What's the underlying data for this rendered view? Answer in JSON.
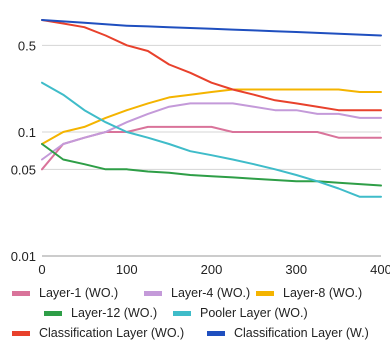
{
  "chart_data": {
    "type": "line",
    "title": "",
    "xlabel": "",
    "ylabel": "",
    "xlim": [
      0,
      400
    ],
    "ylim": [
      0.01,
      1
    ],
    "yscale": "log",
    "grid": "horizontal",
    "legend_position": "bottom",
    "x_ticks": [
      "0",
      "100",
      "200",
      "300",
      "400"
    ],
    "y_ticks": [
      "0.01",
      "0.05",
      "0.1",
      "0.5"
    ],
    "x": [
      0,
      25,
      50,
      75,
      100,
      125,
      150,
      175,
      200,
      225,
      250,
      275,
      300,
      325,
      350,
      375,
      400
    ],
    "series": [
      {
        "name": "Layer-1 (WO.)",
        "color": "#d9739a",
        "values": [
          0.05,
          0.08,
          0.09,
          0.1,
          0.1,
          0.11,
          0.11,
          0.11,
          0.11,
          0.1,
          0.1,
          0.1,
          0.1,
          0.1,
          0.09,
          0.09,
          0.09
        ]
      },
      {
        "name": "Layer-4 (WO.)",
        "color": "#c49ad9",
        "values": [
          0.06,
          0.08,
          0.09,
          0.1,
          0.12,
          0.14,
          0.16,
          0.17,
          0.17,
          0.17,
          0.16,
          0.15,
          0.15,
          0.14,
          0.14,
          0.13,
          0.13
        ]
      },
      {
        "name": "Layer-8 (WO.)",
        "color": "#f4b400",
        "values": [
          0.08,
          0.1,
          0.11,
          0.13,
          0.15,
          0.17,
          0.19,
          0.2,
          0.21,
          0.22,
          0.22,
          0.22,
          0.22,
          0.22,
          0.22,
          0.21,
          0.21
        ]
      },
      {
        "name": "Layer-12 (WO.)",
        "color": "#2e9e47",
        "values": [
          0.08,
          0.06,
          0.055,
          0.05,
          0.05,
          0.048,
          0.047,
          0.045,
          0.044,
          0.043,
          0.042,
          0.041,
          0.04,
          0.04,
          0.039,
          0.038,
          0.037
        ]
      },
      {
        "name": "Pooler Layer (WO.)",
        "color": "#3fbcc9",
        "values": [
          0.25,
          0.2,
          0.15,
          0.12,
          0.1,
          0.09,
          0.08,
          0.07,
          0.065,
          0.06,
          0.055,
          0.05,
          0.045,
          0.04,
          0.035,
          0.03,
          0.03
        ]
      },
      {
        "name": "Classification Layer (WO.)",
        "color": "#e8412c",
        "values": [
          0.8,
          0.75,
          0.7,
          0.6,
          0.5,
          0.45,
          0.35,
          0.3,
          0.25,
          0.22,
          0.2,
          0.18,
          0.17,
          0.16,
          0.15,
          0.15,
          0.15
        ]
      },
      {
        "name": "Classification Layer (W.)",
        "color": "#1f4fbf",
        "values": [
          0.8,
          0.78,
          0.76,
          0.74,
          0.72,
          0.71,
          0.7,
          0.69,
          0.68,
          0.67,
          0.66,
          0.65,
          0.64,
          0.63,
          0.62,
          0.61,
          0.6
        ]
      }
    ]
  }
}
